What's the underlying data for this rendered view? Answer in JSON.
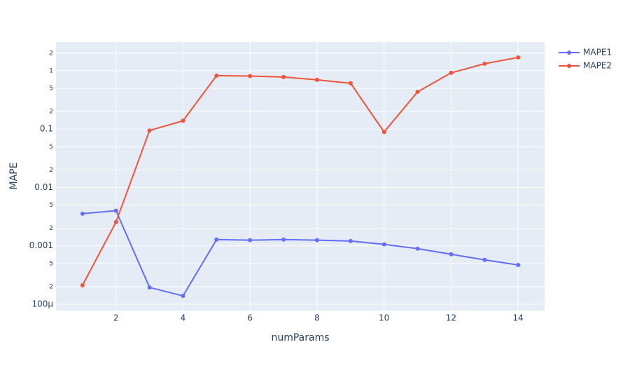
{
  "chart_data": {
    "type": "line",
    "x_label": "numParams",
    "y_label": "MAPE",
    "x": [
      1,
      2,
      3,
      4,
      5,
      6,
      7,
      8,
      9,
      10,
      11,
      12,
      13,
      14
    ],
    "series": [
      {
        "name": "MAPE1",
        "color": "#636efa",
        "values": [
          0.00356,
          0.004,
          0.000194,
          0.000139,
          0.00128,
          0.00125,
          0.00128,
          0.00125,
          0.00121,
          0.00106,
          0.000895,
          0.000718,
          0.000575,
          0.00047
        ]
      },
      {
        "name": "MAPE2",
        "color": "#ef553b",
        "values": [
          0.000211,
          0.00256,
          0.0946,
          0.139,
          0.824,
          0.81,
          0.78,
          0.7,
          0.61,
          0.0895,
          0.436,
          0.92,
          1.32,
          1.69
        ]
      }
    ],
    "xlim": [
      0.21,
      14.79
    ],
    "xticks": [
      2,
      4,
      6,
      8,
      10,
      12,
      14
    ],
    "ylim": [
      7.8e-05,
      3.1
    ],
    "log_y": true,
    "yticks": [
      {
        "value": 0.0001,
        "label": "100µ"
      },
      {
        "value": 0.0002,
        "label": "2"
      },
      {
        "value": 0.0005,
        "label": "5"
      },
      0.001,
      {
        "value": 0.002,
        "label": "2"
      },
      {
        "value": 0.005,
        "label": "5"
      },
      0.01,
      {
        "value": 0.02,
        "label": "2"
      },
      {
        "value": 0.05,
        "label": "5"
      },
      0.1,
      {
        "value": 0.2,
        "label": "2"
      },
      {
        "value": 0.5,
        "label": "5"
      },
      1,
      2
    ],
    "grid": true,
    "legend": "right",
    "background": "#e5ecf6"
  }
}
